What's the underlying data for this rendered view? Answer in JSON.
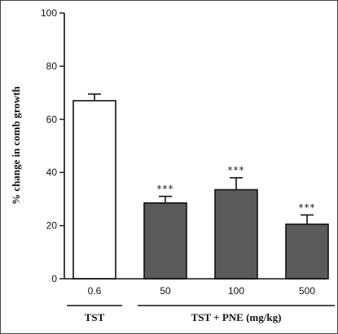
{
  "chart_data": {
    "type": "bar",
    "categories": [
      "0.6",
      "50",
      "100",
      "500"
    ],
    "values": [
      67,
      28.5,
      33.5,
      20.5
    ],
    "error_plus": [
      2.5,
      2.5,
      4.5,
      3.5
    ],
    "annotations": [
      "",
      "***",
      "***",
      "***"
    ],
    "bar_fills": [
      "#ffffff",
      "#5a5a5a",
      "#5a5a5a",
      "#5a5a5a"
    ],
    "ylabel": "% change in comb growth",
    "ylim": [
      0,
      100
    ],
    "yticks": [
      0,
      20,
      40,
      60,
      80,
      100
    ],
    "grid": false,
    "groups": [
      {
        "label": "TST"
      },
      {
        "label": "TST + PNE (mg/kg)"
      }
    ]
  }
}
